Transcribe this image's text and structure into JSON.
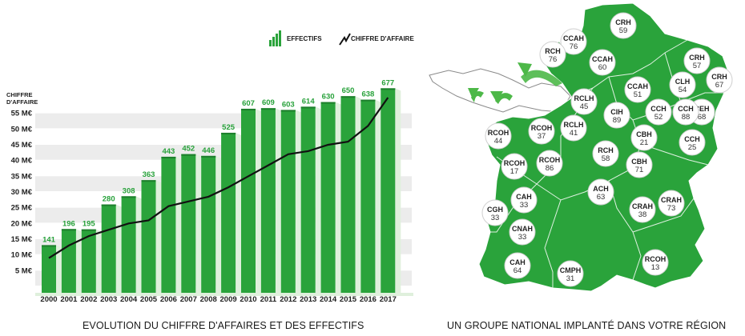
{
  "chart_data": {
    "type": "bar",
    "categories": [
      "2000",
      "2001",
      "2002",
      "2003",
      "2004",
      "2005",
      "2006",
      "2007",
      "2008",
      "2009",
      "2010",
      "2011",
      "2012",
      "2013",
      "2014",
      "2015",
      "2016",
      "2017"
    ],
    "series": [
      {
        "name": "EFFECTIFS",
        "type": "bar",
        "values": [
          141,
          196,
          195,
          280,
          308,
          363,
          443,
          452,
          446,
          525,
          607,
          609,
          603,
          614,
          630,
          650,
          638,
          677
        ]
      },
      {
        "name": "CHIFFRE D'AFFAIRE",
        "type": "line",
        "values": [
          9,
          13,
          16,
          18,
          20,
          21,
          25.5,
          27,
          28.5,
          31.5,
          35,
          38.5,
          42,
          43,
          45,
          46,
          51,
          60
        ]
      }
    ],
    "ylabel": "CHIFFRE D'AFFAIRE",
    "yticks": [
      "5 M€",
      "10 M€",
      "15 M€",
      "20 M€",
      "25 M€",
      "30 M€",
      "35 M€",
      "40 M€",
      "45 M€",
      "50 M€",
      "55 M€"
    ],
    "ylim": [
      0,
      60
    ],
    "bars_max": 760,
    "title": "EVOLUTION DU CHIFFRE D'AFFAIRES ET DES EFFECTIFS",
    "legend_placement": "top-right"
  },
  "map": {
    "title": "UN GROUPE NATIONAL IMPLANTÉ DANS VOTRE RÉGION",
    "regions": [
      {
        "name": "CRH",
        "value": "59"
      },
      {
        "name": "CCAH",
        "value": "76"
      },
      {
        "name": "RCH",
        "value": "76"
      },
      {
        "name": "CCAH",
        "value": "60"
      },
      {
        "name": "CRH",
        "value": "57"
      },
      {
        "name": "CRH",
        "value": "67"
      },
      {
        "name": "CLH",
        "value": "54"
      },
      {
        "name": "CCAH",
        "value": "51"
      },
      {
        "name": "RCLH",
        "value": "45"
      },
      {
        "name": "CEH",
        "value": "68"
      },
      {
        "name": "CCH",
        "value": "88"
      },
      {
        "name": "CCH",
        "value": "52"
      },
      {
        "name": "CIH",
        "value": "89"
      },
      {
        "name": "RCOH",
        "value": "44"
      },
      {
        "name": "RCOH",
        "value": "37"
      },
      {
        "name": "RCLH",
        "value": "41"
      },
      {
        "name": "CBH",
        "value": "21"
      },
      {
        "name": "CCH",
        "value": "25"
      },
      {
        "name": "RCH",
        "value": "58"
      },
      {
        "name": "RCOH",
        "value": "17"
      },
      {
        "name": "RCOH",
        "value": "86"
      },
      {
        "name": "CBH",
        "value": "71"
      },
      {
        "name": "ACH",
        "value": "63"
      },
      {
        "name": "CRAH",
        "value": "73"
      },
      {
        "name": "CAH",
        "value": "33"
      },
      {
        "name": "CGH",
        "value": "33"
      },
      {
        "name": "CRAH",
        "value": "38"
      },
      {
        "name": "CNAH",
        "value": "33"
      },
      {
        "name": "CAH",
        "value": "64"
      },
      {
        "name": "CMPH",
        "value": "31"
      },
      {
        "name": "RCOH",
        "value": "13"
      }
    ]
  },
  "colors": {
    "green": "#2aa33b",
    "dark_green": "#1d7f2c",
    "light_green": "#dff0dc",
    "stripe": "#ececec",
    "line": "#111111"
  }
}
